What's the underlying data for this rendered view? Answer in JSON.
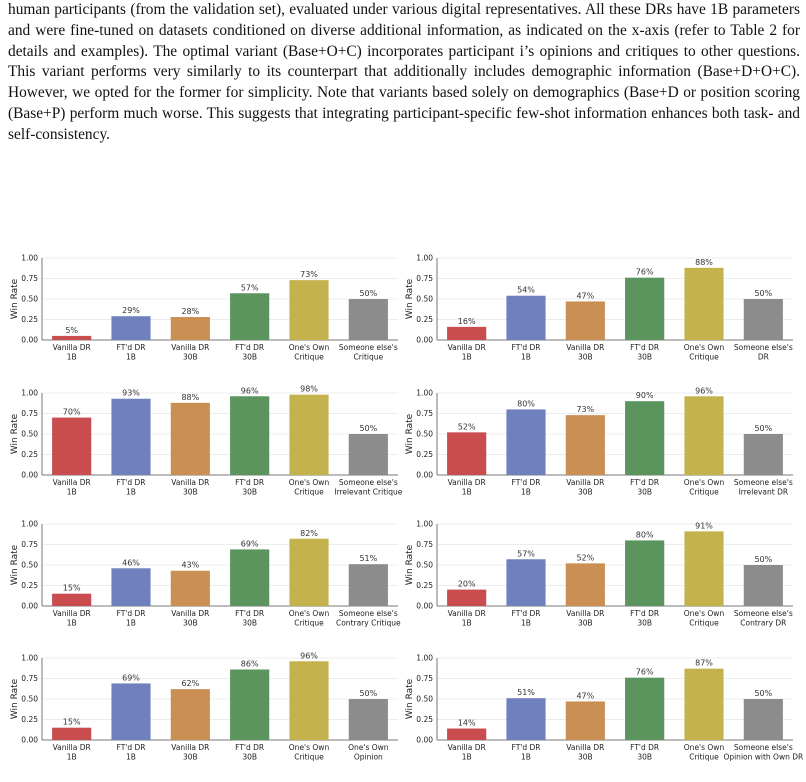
{
  "caption": {
    "text": "human participants (from the validation set), evaluated under various digital representatives. All these DRs have 1B parameters and were fine-tuned on datasets conditioned on diverse additional information, as indicated on the x-axis (refer to Table 2 for details and examples). The optimal variant (Base+O+C) incorporates participant i’s opinions and critiques to other questions. This variant performs very similarly to its counterpart that additionally includes demographic information (Base+D+O+C). However, we opted for the former for simplicity. Note that variants based solely on demographics (Base+D or position scoring (Base+P) perform much worse. This suggests that integrating participant-specific few-shot information enhances both task- and self-consistency."
  },
  "colors": {
    "red": "#c94d4f",
    "blue": "#6e81bd",
    "orange": "#c98f53",
    "green": "#5b945d",
    "yellow": "#c4b24d",
    "gray": "#8c8c8c",
    "grid": "#e6e6e6",
    "axis": "#555555"
  },
  "chart_data": [
    {
      "type": "bar",
      "ylabel": "Win Rate",
      "ylim": [
        0,
        1.0
      ],
      "yticks": [
        "0.00",
        "0.25",
        "0.50",
        "0.75",
        "1.00"
      ],
      "categories": [
        [
          "Vanilla DR",
          "1B"
        ],
        [
          "FT'd DR",
          "1B"
        ],
        [
          "Vanilla DR",
          "30B"
        ],
        [
          "FT'd DR",
          "30B"
        ],
        [
          "One's Own",
          "Critique"
        ],
        [
          "Someone else's",
          "Critique"
        ]
      ],
      "values": [
        0.05,
        0.29,
        0.28,
        0.57,
        0.73,
        0.5
      ],
      "labels": [
        "5%",
        "29%",
        "28%",
        "57%",
        "73%",
        "50%"
      ]
    },
    {
      "type": "bar",
      "ylabel": "Win Rate",
      "ylim": [
        0,
        1.0
      ],
      "yticks": [
        "0.00",
        "0.25",
        "0.50",
        "0.75",
        "1.00"
      ],
      "categories": [
        [
          "Vanilla DR",
          "1B"
        ],
        [
          "FT'd DR",
          "1B"
        ],
        [
          "Vanilla DR",
          "30B"
        ],
        [
          "FT'd DR",
          "30B"
        ],
        [
          "One's Own",
          "Critique"
        ],
        [
          "Someone else's",
          "DR"
        ]
      ],
      "values": [
        0.16,
        0.54,
        0.47,
        0.76,
        0.88,
        0.5
      ],
      "labels": [
        "16%",
        "54%",
        "47%",
        "76%",
        "88%",
        "50%"
      ]
    },
    {
      "type": "bar",
      "ylabel": "Win Rate",
      "ylim": [
        0,
        1.0
      ],
      "yticks": [
        "0.00",
        "0.25",
        "0.50",
        "0.75",
        "1.00"
      ],
      "categories": [
        [
          "Vanilla DR",
          "1B"
        ],
        [
          "FT'd DR",
          "1B"
        ],
        [
          "Vanilla DR",
          "30B"
        ],
        [
          "FT'd DR",
          "30B"
        ],
        [
          "One's Own",
          "Critique"
        ],
        [
          "Someone else's",
          "Irrelevant Critique"
        ]
      ],
      "values": [
        0.7,
        0.93,
        0.88,
        0.96,
        0.98,
        0.5
      ],
      "labels": [
        "70%",
        "93%",
        "88%",
        "96%",
        "98%",
        "50%"
      ]
    },
    {
      "type": "bar",
      "ylabel": "Win Rate",
      "ylim": [
        0,
        1.0
      ],
      "yticks": [
        "0.00",
        "0.25",
        "0.50",
        "0.75",
        "1.00"
      ],
      "categories": [
        [
          "Vanilla DR",
          "1B"
        ],
        [
          "FT'd DR",
          "1B"
        ],
        [
          "Vanilla DR",
          "30B"
        ],
        [
          "FT'd DR",
          "30B"
        ],
        [
          "One's Own",
          "Critique"
        ],
        [
          "Someone else's",
          "Irrelevant DR"
        ]
      ],
      "values": [
        0.52,
        0.8,
        0.73,
        0.9,
        0.96,
        0.5
      ],
      "labels": [
        "52%",
        "80%",
        "73%",
        "90%",
        "96%",
        "50%"
      ]
    },
    {
      "type": "bar",
      "ylabel": "Win Rate",
      "ylim": [
        0,
        1.0
      ],
      "yticks": [
        "0.00",
        "0.25",
        "0.50",
        "0.75",
        "1.00"
      ],
      "categories": [
        [
          "Vanilla DR",
          "1B"
        ],
        [
          "FT'd DR",
          "1B"
        ],
        [
          "Vanilla DR",
          "30B"
        ],
        [
          "FT'd DR",
          "30B"
        ],
        [
          "One's Own",
          "Critique"
        ],
        [
          "Someone else's",
          "Contrary Critique"
        ]
      ],
      "values": [
        0.15,
        0.46,
        0.43,
        0.69,
        0.82,
        0.51
      ],
      "labels": [
        "15%",
        "46%",
        "43%",
        "69%",
        "82%",
        "51%"
      ]
    },
    {
      "type": "bar",
      "ylabel": "Win Rate",
      "ylim": [
        0,
        1.0
      ],
      "yticks": [
        "0.00",
        "0.25",
        "0.50",
        "0.75",
        "1.00"
      ],
      "categories": [
        [
          "Vanilla DR",
          "1B"
        ],
        [
          "FT'd DR",
          "1B"
        ],
        [
          "Vanilla DR",
          "30B"
        ],
        [
          "FT'd DR",
          "30B"
        ],
        [
          "One's Own",
          "Critique"
        ],
        [
          "Someone else's",
          "Contrary DR"
        ]
      ],
      "values": [
        0.2,
        0.57,
        0.52,
        0.8,
        0.91,
        0.5
      ],
      "labels": [
        "20%",
        "57%",
        "52%",
        "80%",
        "91%",
        "50%"
      ]
    },
    {
      "type": "bar",
      "ylabel": "Win Rate",
      "ylim": [
        0,
        1.0
      ],
      "yticks": [
        "0.00",
        "0.25",
        "0.50",
        "0.75",
        "1.00"
      ],
      "categories": [
        [
          "Vanilla DR",
          "1B"
        ],
        [
          "FT'd DR",
          "1B"
        ],
        [
          "Vanilla DR",
          "30B"
        ],
        [
          "FT'd DR",
          "30B"
        ],
        [
          "One's Own",
          "Critique"
        ],
        [
          "One's Own",
          "Opinion"
        ]
      ],
      "values": [
        0.15,
        0.69,
        0.62,
        0.86,
        0.96,
        0.5
      ],
      "labels": [
        "15%",
        "69%",
        "62%",
        "86%",
        "96%",
        "50%"
      ]
    },
    {
      "type": "bar",
      "ylabel": "Win Rate",
      "ylim": [
        0,
        1.0
      ],
      "yticks": [
        "0.00",
        "0.25",
        "0.50",
        "0.75",
        "1.00"
      ],
      "categories": [
        [
          "Vanilla DR",
          "1B"
        ],
        [
          "FT'd DR",
          "1B"
        ],
        [
          "Vanilla DR",
          "30B"
        ],
        [
          "FT'd DR",
          "30B"
        ],
        [
          "One's Own",
          "Critique"
        ],
        [
          "Someone else's",
          "Opinion with Own DR"
        ]
      ],
      "values": [
        0.14,
        0.51,
        0.47,
        0.76,
        0.87,
        0.5
      ],
      "labels": [
        "14%",
        "51%",
        "47%",
        "76%",
        "87%",
        "50%"
      ]
    }
  ]
}
